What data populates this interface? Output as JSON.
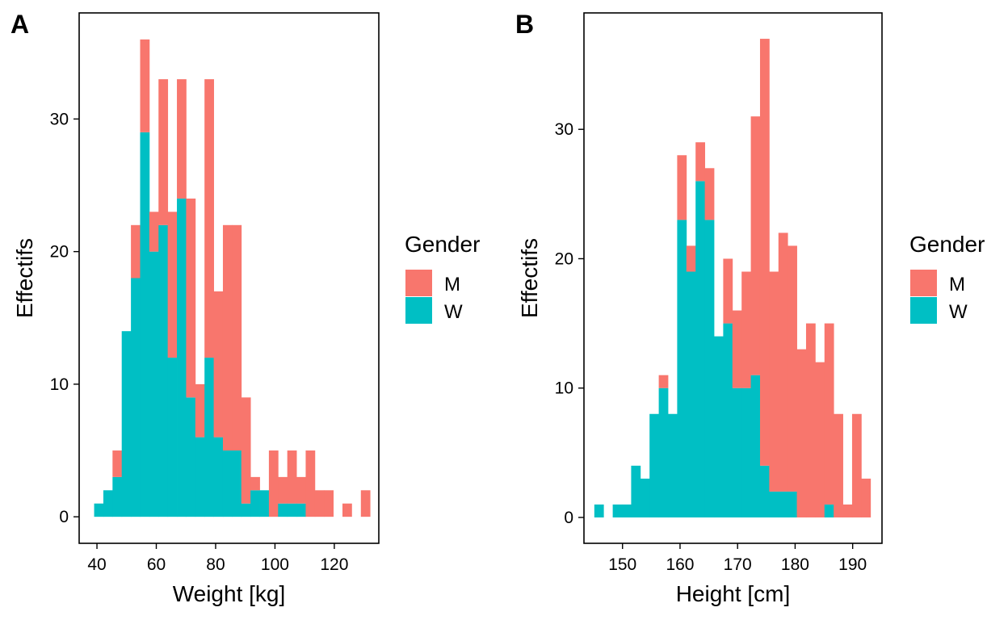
{
  "chart_data": [
    {
      "type": "bar",
      "tag": "A",
      "xlabel": "Weight  [kg]",
      "ylabel": "Effectifs",
      "xlim": [
        34,
        135
      ],
      "ylim": [
        -2,
        38
      ],
      "xticks": [
        40,
        60,
        80,
        100,
        120
      ],
      "yticks": [
        0,
        10,
        20,
        30
      ],
      "bin_width": 3.1,
      "legend_title": "Gender",
      "legend_position": "right",
      "stacked": true,
      "bin_centers": [
        40.6,
        43.7,
        46.8,
        49.9,
        53.0,
        56.1,
        59.2,
        62.3,
        65.4,
        68.5,
        71.6,
        74.7,
        77.8,
        80.9,
        84.0,
        87.1,
        90.2,
        93.3,
        96.4,
        99.5,
        102.6,
        105.7,
        108.8,
        111.9,
        115.0,
        118.1,
        121.2,
        124.3,
        127.4,
        130.5
      ],
      "series": [
        {
          "name": "W",
          "color": "#00BFC4",
          "values": [
            1,
            2,
            3,
            14,
            18,
            29,
            20,
            22,
            12,
            24,
            9,
            6,
            12,
            6,
            5,
            5,
            1,
            2,
            2,
            0,
            1,
            1,
            1,
            0,
            0,
            0,
            0,
            0,
            0,
            0
          ]
        },
        {
          "name": "M",
          "color": "#F8766D",
          "values": [
            0,
            0,
            2,
            0,
            4,
            7,
            3,
            11,
            11,
            9,
            15,
            4,
            21,
            11,
            17,
            17,
            8,
            1,
            0,
            5,
            2,
            4,
            2,
            5,
            2,
            2,
            0,
            1,
            0,
            2
          ]
        }
      ]
    },
    {
      "type": "bar",
      "tag": "B",
      "xlabel": "Height  [cm]",
      "ylabel": "Effectifs",
      "xlim": [
        143.3,
        195.1
      ],
      "ylim": [
        -2,
        39
      ],
      "xticks": [
        150,
        160,
        170,
        180,
        190
      ],
      "yticks": [
        0,
        10,
        20,
        30
      ],
      "bin_width": 1.6,
      "legend_title": "Gender",
      "legend_position": "right",
      "stacked": true,
      "bin_centers": [
        145.9,
        147.5,
        149.1,
        150.7,
        152.3,
        153.9,
        155.5,
        157.1,
        158.7,
        160.3,
        161.9,
        163.5,
        165.1,
        166.7,
        168.3,
        169.9,
        171.5,
        173.1,
        174.7,
        176.3,
        177.9,
        179.5,
        181.1,
        182.7,
        184.3,
        185.9,
        187.5,
        189.1,
        190.7,
        192.3
      ],
      "series": [
        {
          "name": "W",
          "color": "#00BFC4",
          "values": [
            1,
            0,
            1,
            1,
            4,
            3,
            8,
            10,
            8,
            23,
            19,
            26,
            23,
            14,
            15,
            10,
            10,
            11,
            4,
            2,
            2,
            2,
            0,
            0,
            0,
            1,
            0,
            0,
            0,
            0
          ]
        },
        {
          "name": "M",
          "color": "#F8766D",
          "values": [
            0,
            0,
            0,
            0,
            0,
            0,
            0,
            1,
            0,
            5,
            2,
            3,
            4,
            0,
            5,
            6,
            9,
            20,
            33,
            17,
            20,
            19,
            13,
            15,
            12,
            14,
            8,
            1,
            8,
            3
          ]
        }
      ]
    }
  ],
  "legend": {
    "title": "Gender",
    "items": [
      {
        "label": "M",
        "color": "#F8766D"
      },
      {
        "label": "W",
        "color": "#00BFC4"
      }
    ]
  }
}
